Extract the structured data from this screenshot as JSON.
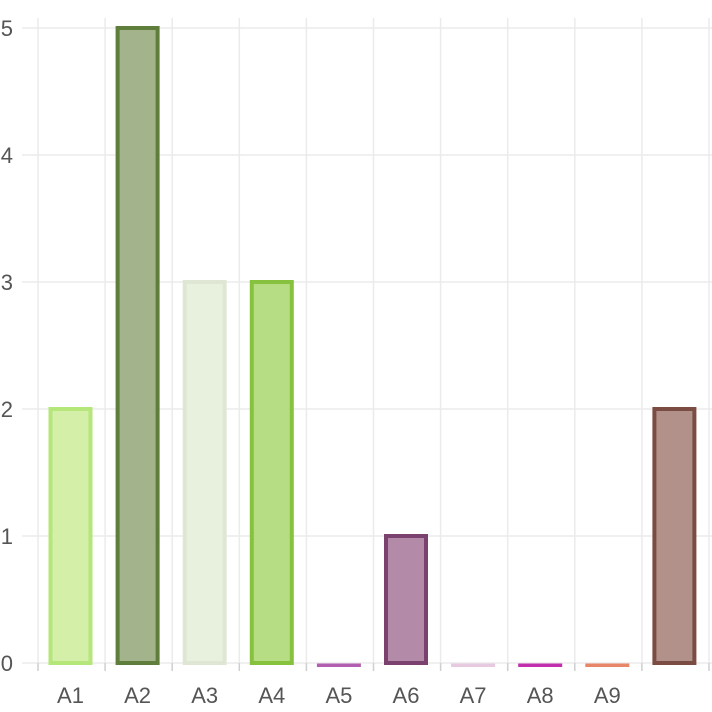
{
  "chart_data": {
    "type": "bar",
    "title": "",
    "xlabel": "",
    "ylabel": "",
    "categories": [
      "A1",
      "A2",
      "A3",
      "A4",
      "A5",
      "A6",
      "A7",
      "A8",
      "A9",
      ""
    ],
    "values": [
      2,
      5,
      3,
      3,
      0,
      1,
      0,
      0,
      0,
      2
    ],
    "ylim": [
      0,
      5
    ],
    "yticks": [
      0,
      1,
      2,
      3,
      4,
      5
    ],
    "grid": true,
    "legend": "none",
    "colors": {
      "fill": [
        "#d4efa8",
        "#a3b38b",
        "#e8f0de",
        "#b6dc84",
        "#e8c6e8",
        "#b38aa8",
        "#f4e8f1",
        "#f1c6ec",
        "#fbd7cc",
        "#b2918a"
      ],
      "stroke": [
        "#b4e67a",
        "#5f7d3b",
        "#dfe7d4",
        "#86c23e",
        "#b35fb1",
        "#7b416f",
        "#e6cbe0",
        "#c22fac",
        "#e8866a",
        "#7a4c42"
      ],
      "grid": "#ebebeb",
      "tick_text": "#555555"
    }
  }
}
